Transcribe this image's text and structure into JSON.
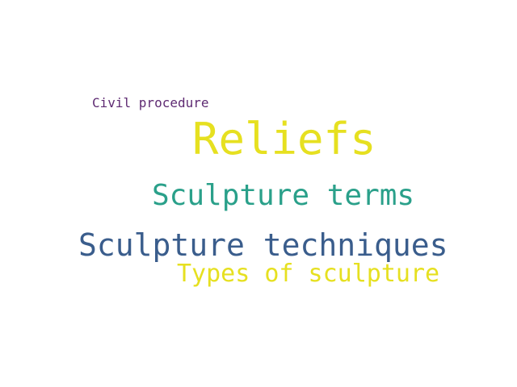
{
  "background_color": "#ffffff",
  "words": [
    {
      "text": "Civil procedure",
      "color": "#5e2a72"
    },
    {
      "text": "Reliefs",
      "color": "#e6e020"
    },
    {
      "text": "Sculpture terms",
      "color": "#2aa08a"
    },
    {
      "text": "Sculpture techniques",
      "color": "#3a5d8c"
    },
    {
      "text": "Types of sculpture",
      "color": "#e6e020"
    }
  ]
}
